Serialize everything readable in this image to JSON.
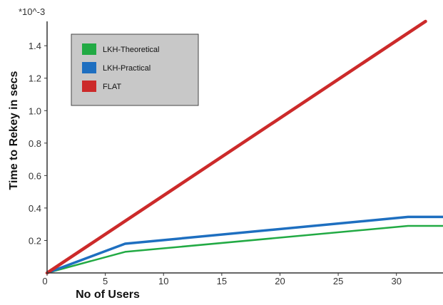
{
  "chart_data": {
    "type": "line",
    "title": "",
    "xlabel": "No of Users",
    "ylabel": "Time to Rekey in secs",
    "y_multiplier": "*10^-3",
    "xlim": [
      0,
      34
    ],
    "ylim": [
      0,
      1.55
    ],
    "x_ticks": [
      "0",
      "5",
      "10",
      "15",
      "20",
      "25",
      "30"
    ],
    "y_ticks": [
      "0.2",
      "0.4",
      "0.6",
      "0.8",
      "1.0",
      "1.2",
      "1.4"
    ],
    "grid": false,
    "legend_position": "top-left",
    "series": [
      {
        "name": "LKH-Theoretical",
        "color": "#22aa44",
        "x": [
          0,
          6.7,
          31,
          34
        ],
        "y": [
          0,
          0.13,
          0.29,
          0.29
        ]
      },
      {
        "name": "LKH-Practical",
        "color": "#1e6fc0",
        "x": [
          0,
          6.7,
          31,
          34
        ],
        "y": [
          0,
          0.18,
          0.345,
          0.345
        ]
      },
      {
        "name": "FLAT",
        "color": "#cc2a2a",
        "x": [
          0,
          32.5
        ],
        "y": [
          0,
          1.55
        ]
      }
    ]
  }
}
